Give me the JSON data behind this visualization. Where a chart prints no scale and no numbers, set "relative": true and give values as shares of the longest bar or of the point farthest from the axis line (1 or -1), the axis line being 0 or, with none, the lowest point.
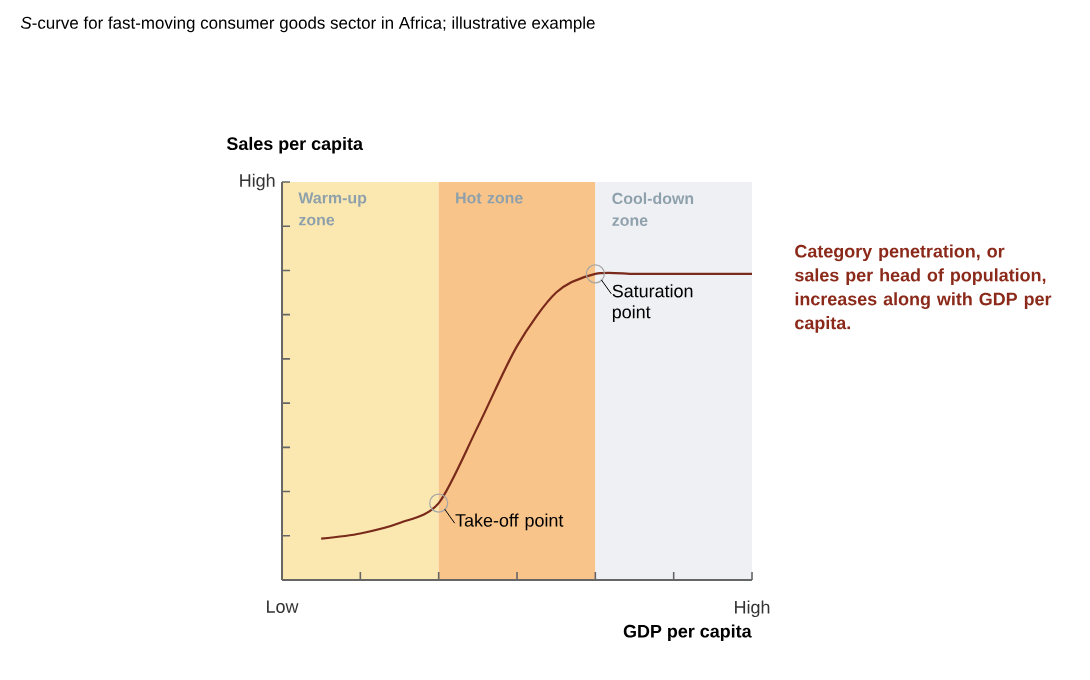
{
  "chart_data": {
    "type": "line",
    "title": "*S*-curve for fast-moving consumer goods sector in Africa; illustrative example",
    "xlabel": "GDP per capita",
    "relative": true,
    "categories": [
      null,
      null,
      null,
      null,
      null,
      null,
      null,
      null,
      null,
      null,
      null,
      null,
      null
    ],
    "series": [
      {
        "color": "#7a2a1a",
        "values": [
          null,
          0.135,
          0.152,
          0.186,
          0.251,
          0.501,
          0.764,
          0.939,
          1,
          1,
          1,
          1,
          1
        ]
      }
    ],
    "annotations": [
      "Warm-up zone",
      "Hot zone",
      "Cool-down zone",
      "Take-off point",
      "Saturation point",
      "High",
      "Low",
      "High",
      "Sales per capita",
      "Category penetration, or sales per head of population, increases along with GDP per capita."
    ],
    "grid": false,
    "marker": "none",
    "line_style": "solid"
  }
}
